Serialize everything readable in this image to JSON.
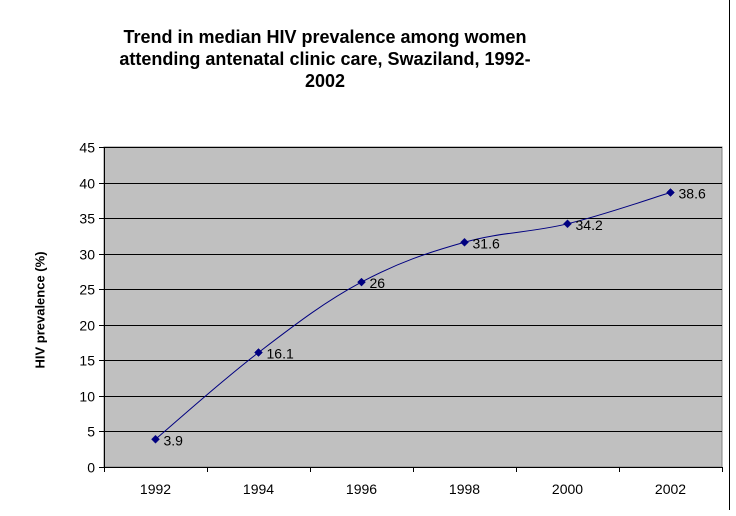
{
  "chart_data": {
    "type": "line",
    "title": "Trend in median HIV prevalence among women attending antenatal clinic care, Swaziland, 1992-2002",
    "title_lines": [
      "Trend in median HIV prevalence among women",
      "attending antenatal clinic care, Swaziland, 1992-",
      "2002"
    ],
    "xlabel": "",
    "ylabel": "HIV prevalence (%)",
    "categories": [
      "1992",
      "1994",
      "1996",
      "1998",
      "2000",
      "2002"
    ],
    "series": [
      {
        "values": [
          3.9,
          16.1,
          26,
          31.6,
          34.2,
          38.6
        ],
        "data_labels": [
          "3.9",
          "16.1",
          "26",
          "31.6",
          "34.2",
          "38.6"
        ]
      }
    ],
    "ylim": [
      0,
      45
    ],
    "yticks": [
      0,
      5,
      10,
      15,
      20,
      25,
      30,
      35,
      40,
      45
    ],
    "grid": true,
    "legend": "none",
    "plot_background": "#c0c0c0",
    "series_color": "#000080"
  }
}
